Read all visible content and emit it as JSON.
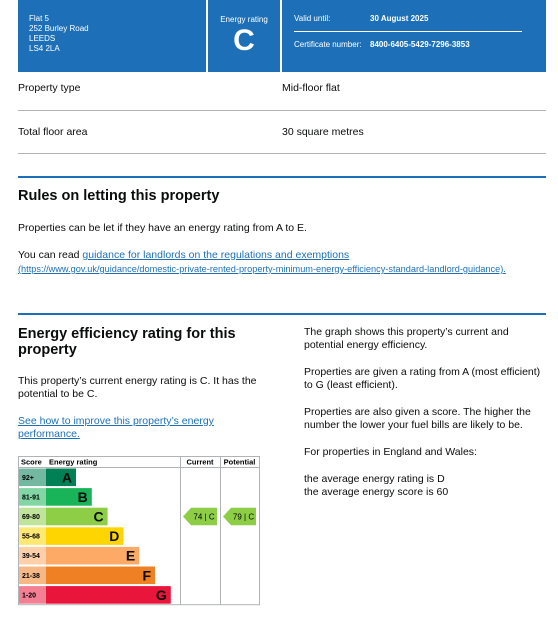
{
  "header": {
    "address": [
      "Flat 5",
      "252 Burley Road",
      "LEEDS",
      "LS4 2LA"
    ],
    "rating_label": "Energy rating",
    "rating": "C",
    "valid_until_label": "Valid until:",
    "valid_until": "30 August 2025",
    "certificate_label": "Certificate number:",
    "certificate_number": "8400-6405-5429-7296-3853"
  },
  "property": [
    {
      "label": "Property type",
      "value": "Mid-floor flat"
    },
    {
      "label": "Total floor area",
      "value": "30 square metres"
    }
  ],
  "letting": {
    "heading": "Rules on letting this property",
    "text": "Properties can be let if they have an energy rating from A to E.",
    "read_prefix": "You can read",
    "link_text": "guidance for landlords on the regulations and exemptions",
    "link_url": "(https://www.gov.uk/guidance/domestic-private-rented-property-minimum-energy-efficiency-standard-landlord-guidance)."
  },
  "efficiency": {
    "heading": "Energy efficiency rating for this property",
    "text": "This property’s current energy rating is C. It has the potential to be C.",
    "link_text": "See how to improve this property’s energy performance.",
    "notes": [
      "The graph shows this property’s current and potential energy efficiency.",
      "Properties are given a rating from A (most efficient) to G (least efficient).",
      "Properties are also given a score. The higher the number the lower your fuel bills are likely to be.",
      "For properties in England and Wales:"
    ],
    "averages": [
      "the average energy rating is D",
      "the average energy score is 60"
    ],
    "chart": {
      "headers": [
        "Score",
        "Energy rating",
        "Current",
        "Potential"
      ],
      "bands": [
        {
          "range": "92+",
          "letter": "A",
          "color": "#008054"
        },
        {
          "range": "81-91",
          "letter": "B",
          "color": "#19b459"
        },
        {
          "range": "69-80",
          "letter": "C",
          "color": "#8dce46",
          "current": "74 | C",
          "potential": "79 | C"
        },
        {
          "range": "55-68",
          "letter": "D",
          "color": "#ffd500"
        },
        {
          "range": "39-54",
          "letter": "E",
          "color": "#fcaa65"
        },
        {
          "range": "21-38",
          "letter": "F",
          "color": "#ef8023"
        },
        {
          "range": "1-20",
          "letter": "G",
          "color": "#e9153b"
        }
      ]
    }
  }
}
